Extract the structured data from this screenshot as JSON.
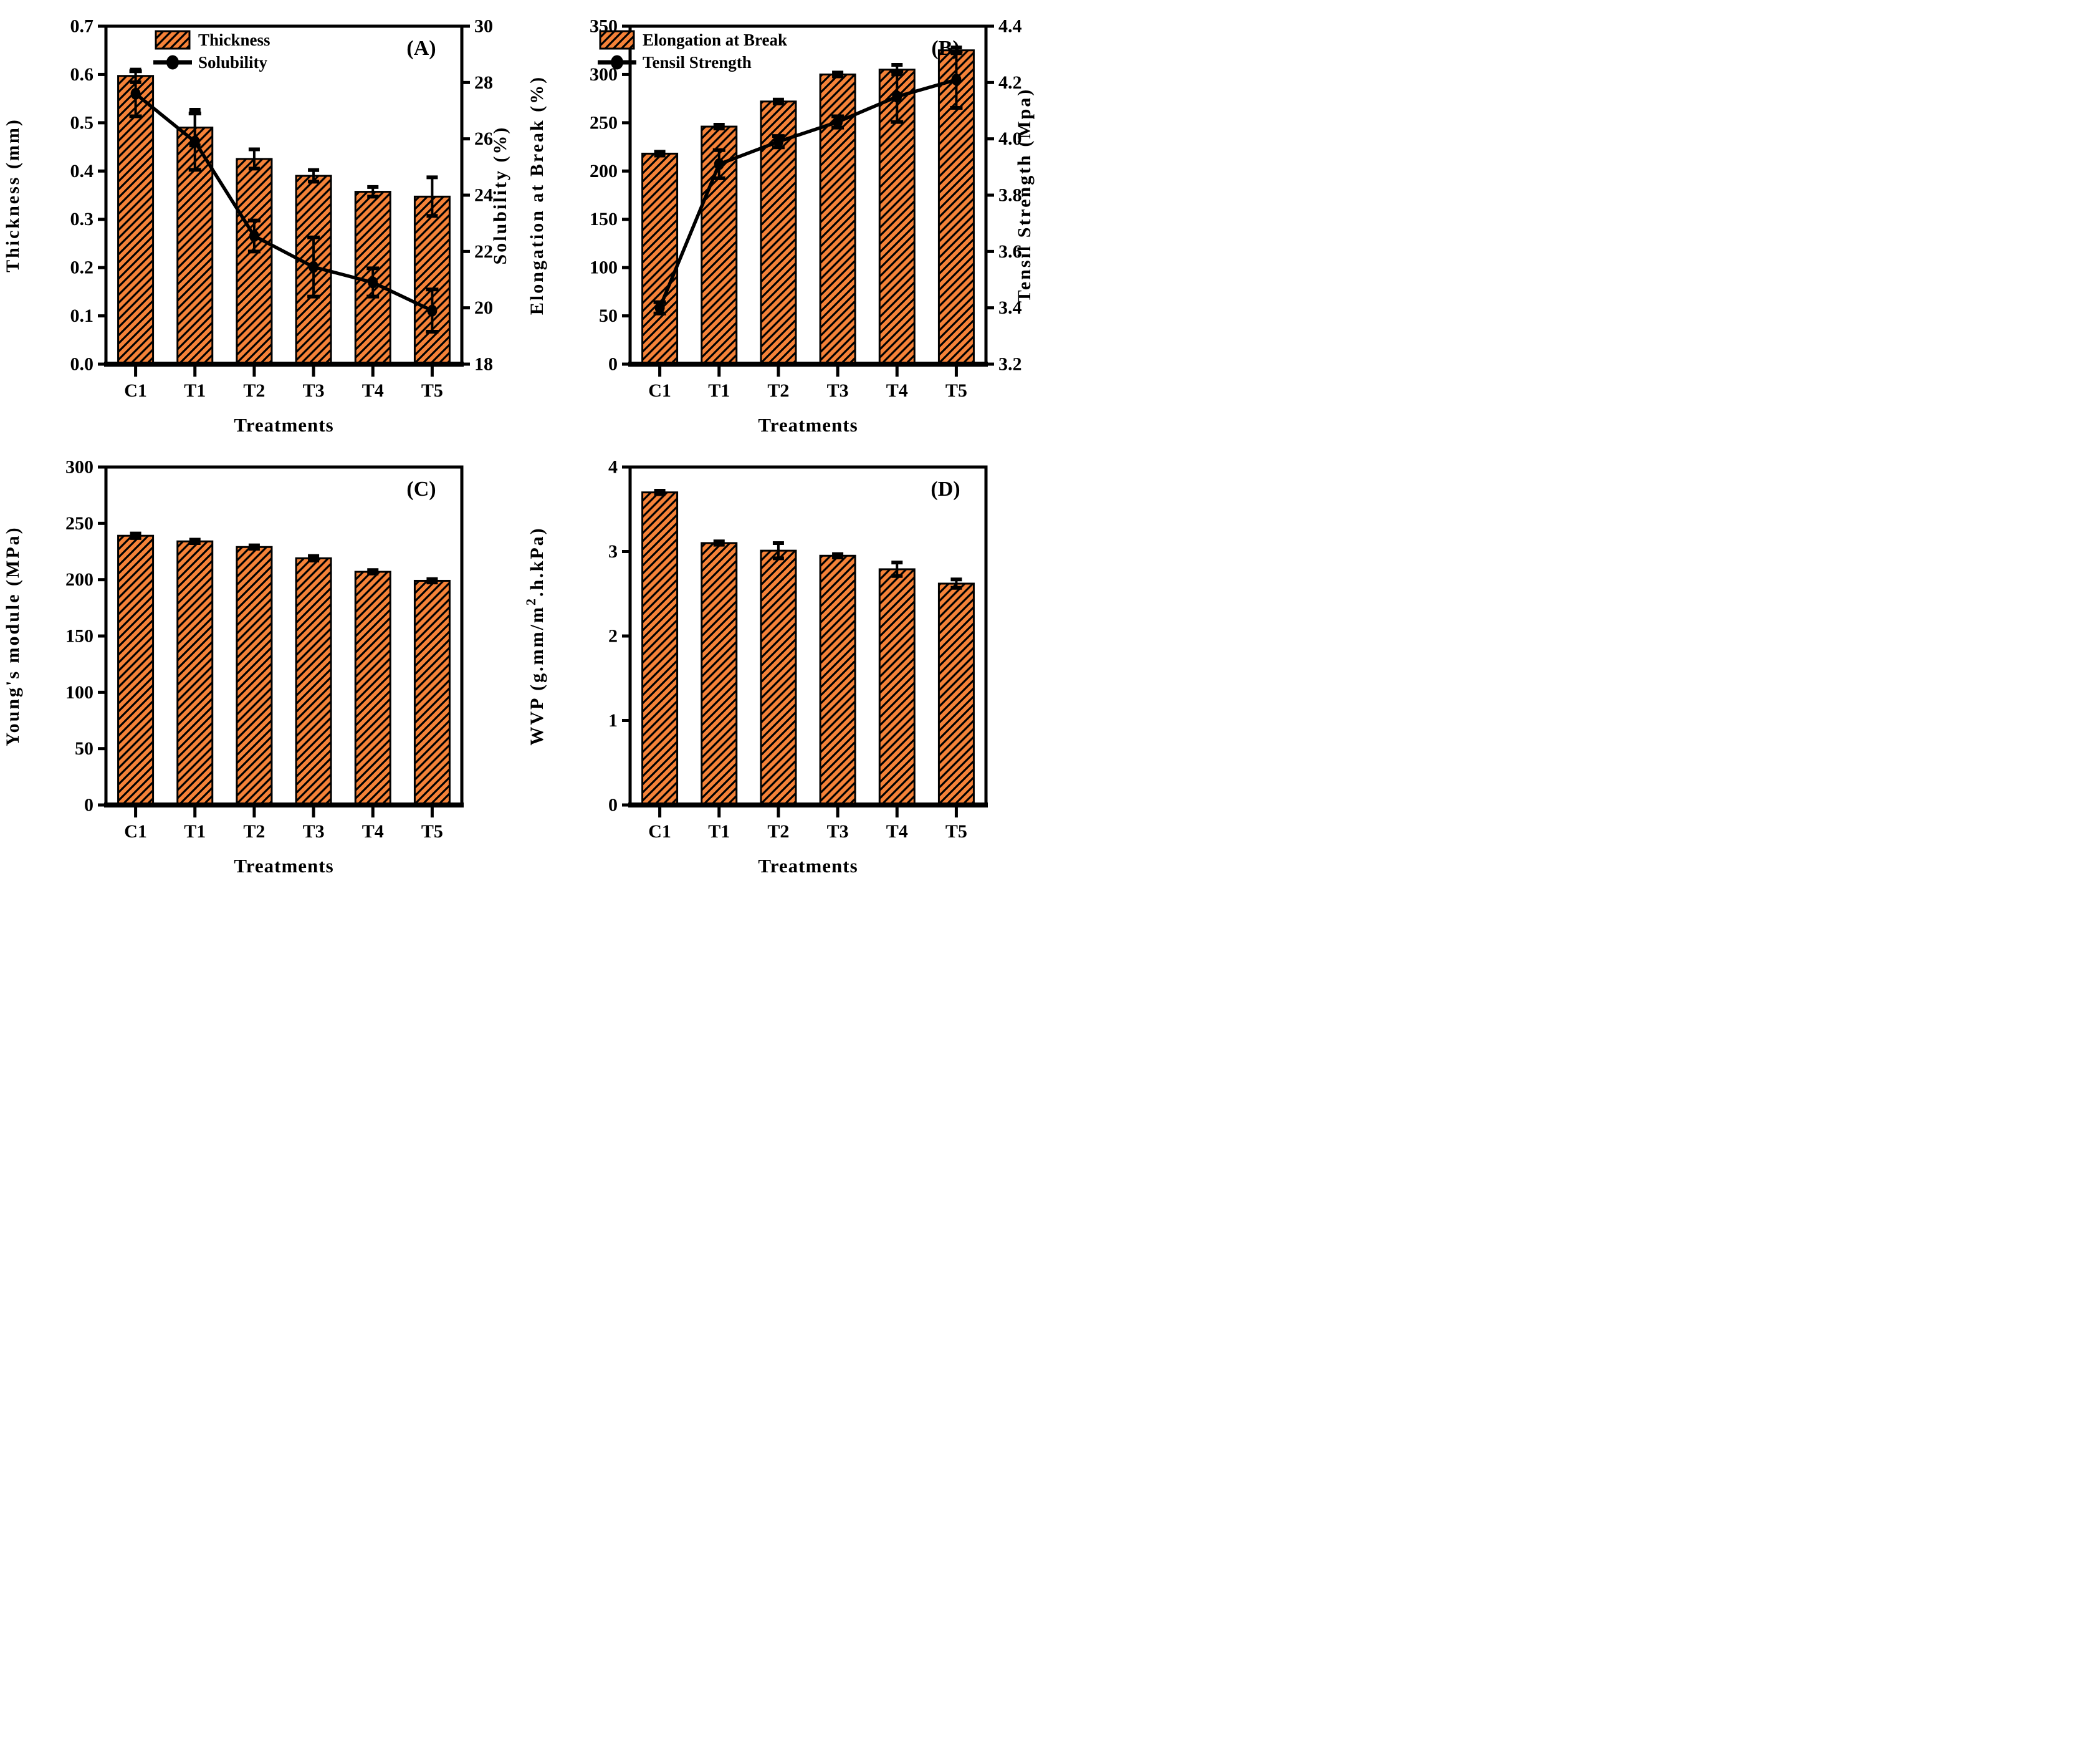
{
  "figure": {
    "background": "#ffffff",
    "bar_fill": "#F58238",
    "hatch_color": "#000000",
    "line_color": "#000000",
    "xlabel": "Treatments",
    "panel_letters": [
      "(A)",
      "(B)",
      "(C)",
      "(D)"
    ]
  },
  "chart_data": [
    {
      "type": "bar",
      "panel": "(A)",
      "categories": [
        "C1",
        "T1",
        "T2",
        "T3",
        "T4",
        "T5"
      ],
      "xlabel": "Treatments",
      "left_axis": {
        "label": "Thickness (mm)",
        "min": 0,
        "max": 0.7,
        "step": 0.1,
        "decimals": 1
      },
      "right_axis": {
        "label": "Solubility (%)",
        "min": 18,
        "max": 30,
        "step": 2,
        "decimals": 0
      },
      "legend": true,
      "series": [
        {
          "name": "Thickness",
          "type": "bar",
          "axis": "left",
          "values": [
            0.597,
            0.49,
            0.425,
            0.39,
            0.357,
            0.347
          ],
          "errors": [
            0.013,
            0.037,
            0.02,
            0.012,
            0.01,
            0.04
          ]
        },
        {
          "name": "Solubility",
          "type": "line",
          "axis": "right",
          "values": [
            27.6,
            25.9,
            22.55,
            21.45,
            20.9,
            19.9
          ],
          "errors": [
            0.8,
            1.0,
            0.55,
            1.05,
            0.5,
            0.75
          ]
        }
      ]
    },
    {
      "type": "bar",
      "panel": "(B)",
      "categories": [
        "C1",
        "T1",
        "T2",
        "T3",
        "T4",
        "T5"
      ],
      "xlabel": "Treatments",
      "left_axis": {
        "label": "Elongation at Break (%)",
        "min": 0,
        "max": 350,
        "step": 50,
        "decimals": 0
      },
      "right_axis": {
        "label": "Tensil Strength (Mpa)",
        "min": 3.2,
        "max": 4.4,
        "step": 0.2,
        "decimals": 1
      },
      "legend": true,
      "series": [
        {
          "name": "Elongation at Break",
          "type": "bar",
          "axis": "left",
          "values": [
            218,
            246,
            272,
            300,
            305,
            325
          ],
          "errors": [
            2,
            2,
            2,
            2,
            5,
            3
          ]
        },
        {
          "name": "Tensil Strength",
          "type": "line",
          "axis": "right",
          "values": [
            3.4,
            3.91,
            3.99,
            4.06,
            4.15,
            4.21
          ],
          "errors": [
            0.02,
            0.05,
            0.02,
            0.02,
            0.09,
            0.1
          ]
        }
      ]
    },
    {
      "type": "bar",
      "panel": "(C)",
      "categories": [
        "C1",
        "T1",
        "T2",
        "T3",
        "T4",
        "T5"
      ],
      "xlabel": "Treatments",
      "left_axis": {
        "label": "Young's module (MPa)",
        "min": 0,
        "max": 300,
        "step": 50,
        "decimals": 0
      },
      "right_axis": null,
      "legend": false,
      "series": [
        {
          "name": "Young's module",
          "type": "bar",
          "axis": "left",
          "values": [
            239,
            234,
            229,
            219,
            207,
            199
          ],
          "errors": [
            2,
            1.5,
            1.5,
            2,
            1.5,
            1.5
          ]
        }
      ]
    },
    {
      "type": "bar",
      "panel": "(D)",
      "categories": [
        "C1",
        "T1",
        "T2",
        "T3",
        "T4",
        "T5"
      ],
      "xlabel": "Treatments",
      "left_axis": {
        "label": "WVP (g.mm/m2.h.kPa)",
        "label_parts": [
          "WVP (g.mm/m",
          "2",
          ".h.kPa)"
        ],
        "min": 0,
        "max": 4,
        "step": 1,
        "decimals": 0
      },
      "right_axis": null,
      "legend": false,
      "series": [
        {
          "name": "WVP",
          "type": "bar",
          "axis": "left",
          "values": [
            3.7,
            3.1,
            3.01,
            2.95,
            2.79,
            2.62
          ],
          "errors": [
            0.02,
            0.02,
            0.09,
            0.02,
            0.08,
            0.05
          ]
        }
      ]
    }
  ]
}
